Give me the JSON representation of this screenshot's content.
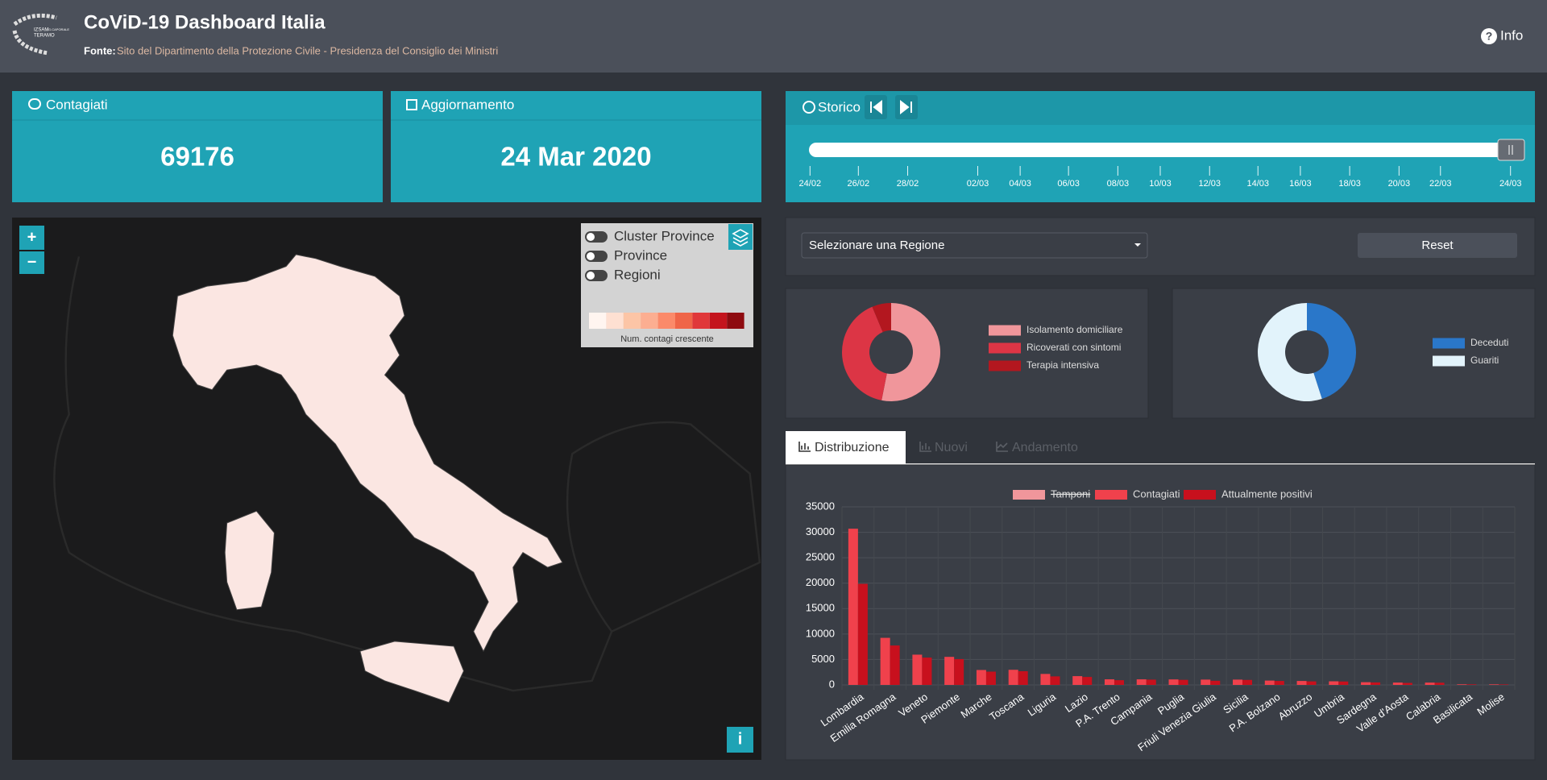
{
  "header": {
    "title": "CoViD-19 Dashboard Italia",
    "source_label": "Fonte:",
    "source": "Sito del Dipartimento della Protezione Civile - Presidenza del Consiglio dei Ministri",
    "info": "Info",
    "logo_lines": [
      "IZSAM",
      "G.CAPORALE",
      "TERAMO"
    ]
  },
  "cards": [
    {
      "title": "Contagiati",
      "value": 69176
    },
    {
      "title": "Aggiornamento",
      "value": "24 Mar 2020"
    }
  ],
  "storico": {
    "title": "Storico",
    "dates": [
      "24/02",
      "26/02",
      "28/02",
      "02/03",
      "04/03",
      "06/03",
      "08/03",
      "10/03",
      "12/03",
      "14/03",
      "16/03",
      "18/03",
      "20/03",
      "22/03",
      "24/03"
    ]
  },
  "map": {
    "layers": [
      "Cluster Province",
      "Province",
      "Regioni"
    ],
    "legend_caption": "Num. contagi crescente",
    "zoom_in": "+",
    "zoom_out": "−",
    "info": "i",
    "scale_colors": [
      "#fff5f0",
      "#fee0d2",
      "#fcc5a6",
      "#fcae91",
      "#fb8a6a",
      "#ef6548",
      "#e0383a",
      "#c4141d",
      "#8e0b10"
    ]
  },
  "filter": {
    "placeholder": "Selezionare una Regione",
    "reset": "Reset"
  },
  "tabs": [
    "Distribuzione",
    "Nuovi",
    "Andamento"
  ],
  "chart_data": [
    {
      "type": "donut",
      "categories": [
        "Isolamento domiciliare",
        "Ricoverati con sintomi",
        "Terapia intensiva"
      ],
      "values": [
        28697,
        21937,
        3396
      ],
      "colors": [
        "#f0969b",
        "#dc3545",
        "#b3171f"
      ]
    },
    {
      "type": "donut",
      "categories": [
        "Deceduti",
        "Guariti"
      ],
      "values": [
        6820,
        8326
      ],
      "colors": [
        "#2a77c9",
        "#e2f3fb"
      ]
    },
    {
      "type": "bar",
      "categories": [
        "Lombardia",
        "Emilia Romagna",
        "Veneto",
        "Piemonte",
        "Marche",
        "Toscana",
        "Liguria",
        "Lazio",
        "P.A. Trento",
        "Campania",
        "Puglia",
        "Friuli Venezia Giulia",
        "Sicilia",
        "P.A. Bolzano",
        "Abruzzo",
        "Umbria",
        "Sardegna",
        "Valle d'Aosta",
        "Calabria",
        "Basilicata",
        "Molise"
      ],
      "series": [
        {
          "name": "Tamponi",
          "color": "#f0969b",
          "hidden": true,
          "values": [
            null,
            null,
            null,
            null,
            null,
            null,
            null,
            null,
            null,
            null,
            null,
            null,
            null,
            null,
            null,
            null,
            null,
            null,
            null,
            null,
            null
          ]
        },
        {
          "name": "Contagiati",
          "color": "#f0414c",
          "values": [
            30703,
            9254,
            5948,
            5515,
            2934,
            2972,
            2160,
            1728,
            1104,
            1101,
            1083,
            1047,
            1046,
            855,
            779,
            711,
            535,
            465,
            458,
            117,
            110
          ]
        },
        {
          "name": "Attualmente positivi",
          "color": "#c8101d",
          "values": [
            19868,
            7752,
            5370,
            5076,
            2611,
            2695,
            1680,
            1569,
            930,
            1041,
            1000,
            817,
            983,
            781,
            697,
            673,
            489,
            393,
            434,
            112,
            95
          ]
        }
      ],
      "ylim": [
        0,
        35000
      ],
      "yticks": [
        0,
        5000,
        10000,
        15000,
        20000,
        25000,
        30000,
        35000
      ],
      "grid": true
    }
  ]
}
